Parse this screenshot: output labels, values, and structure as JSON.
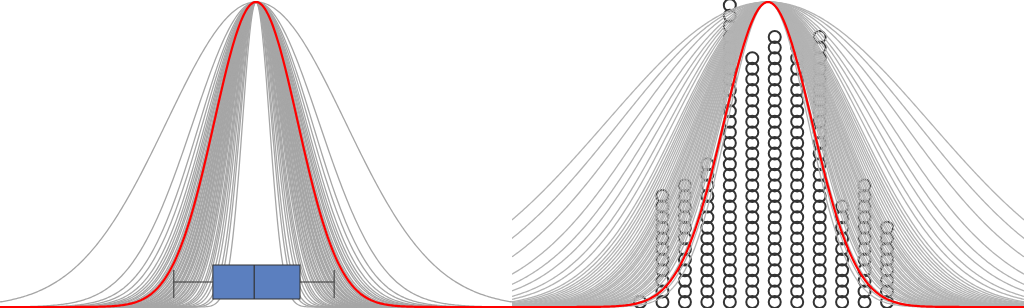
{
  "chart_data": [
    {
      "type": "density",
      "xlim": [
        -5.7,
        5.7
      ],
      "ylim": [
        0,
        1
      ],
      "tick_labels": false,
      "mean": 0,
      "color": "#a6a6a6",
      "sigmas": [
        0.3,
        0.35,
        0.38,
        0.42,
        0.45,
        0.48,
        0.5,
        0.52,
        0.55,
        0.57,
        0.58,
        0.6,
        0.62,
        0.63,
        0.65,
        0.66,
        0.68,
        0.7,
        0.71,
        0.72,
        0.74,
        0.75,
        0.76,
        0.78,
        0.79,
        0.8,
        0.82,
        0.83,
        0.85,
        0.86,
        0.88,
        0.9,
        0.91,
        0.93,
        0.95,
        0.97,
        1.0,
        1.02,
        1.05,
        1.08,
        1.12,
        1.18,
        1.25,
        1.4,
        1.99
      ],
      "highlight": {
        "sigma": 0.93,
        "color": "#ff0000"
      },
      "box": {
        "whisker_low": -1.83,
        "q1": -0.96,
        "median": -0.04,
        "q3": 0.98,
        "whisker_high": 1.74,
        "color": "#5b7fbf"
      }
    },
    {
      "type": "density",
      "xlim": [
        -5.7,
        5.7
      ],
      "ylim": [
        0,
        1
      ],
      "tick_labels": false,
      "mean": 0,
      "color": "#b3b3b3",
      "sigmas": [
        0.9,
        0.95,
        1.0,
        1.05,
        1.08,
        1.1,
        1.12,
        1.15,
        1.18,
        1.2,
        1.22,
        1.25,
        1.27,
        1.3,
        1.32,
        1.35,
        1.37,
        1.4,
        1.42,
        1.45,
        1.48,
        1.5,
        1.52,
        1.55,
        1.58,
        1.6,
        1.63,
        1.66,
        1.7,
        1.74,
        1.78,
        1.82,
        1.86,
        1.9,
        1.95,
        2.0,
        2.1,
        2.2,
        2.35,
        2.5,
        2.7,
        3.0,
        3.3,
        3.6
      ],
      "highlight": {
        "sigma": 0.98,
        "color": "#ff0000"
      },
      "dots": {
        "x": [
          -2.85,
          -2.35,
          -1.85,
          -1.35,
          -0.85,
          -0.35,
          0.15,
          0.65,
          1.15,
          1.65,
          2.15,
          2.65
        ],
        "counts": [
          1,
          11,
          12,
          14,
          29,
          24,
          26,
          25,
          26,
          10,
          12,
          8
        ],
        "color": "#333333"
      }
    }
  ]
}
